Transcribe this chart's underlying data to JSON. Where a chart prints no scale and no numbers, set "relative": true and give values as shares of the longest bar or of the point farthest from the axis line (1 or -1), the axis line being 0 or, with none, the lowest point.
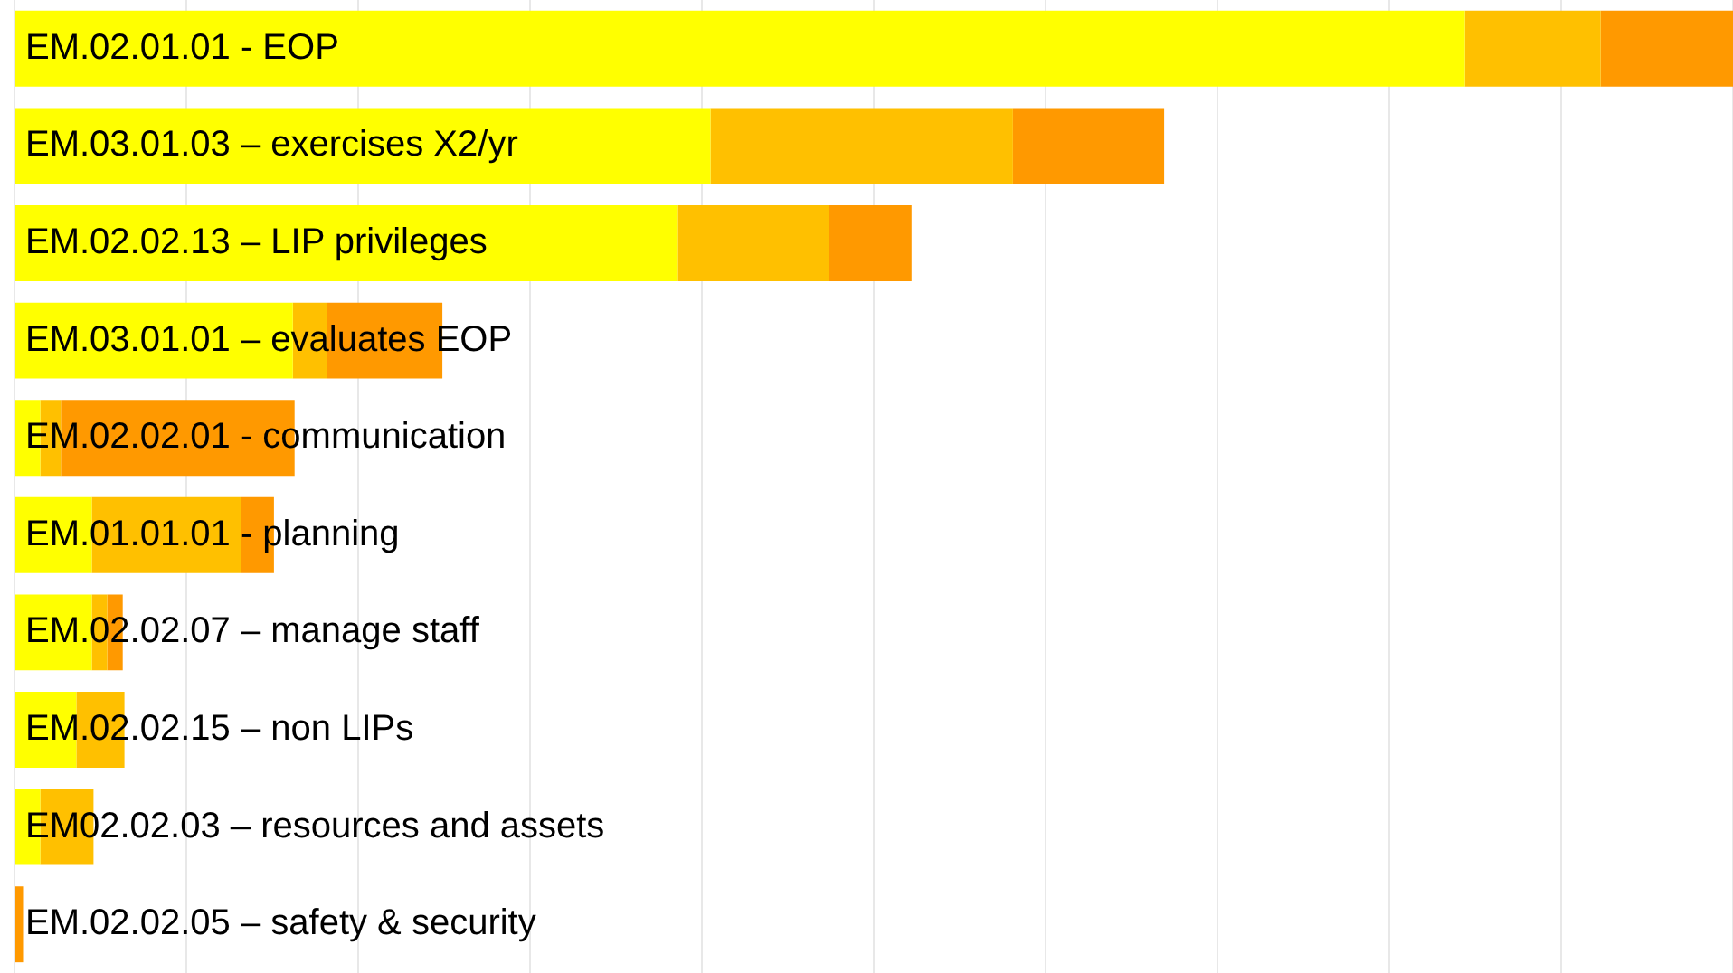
{
  "chart_data": {
    "type": "bar",
    "orientation": "horizontal",
    "stacked": true,
    "relative": true,
    "grid": "x",
    "categories": [
      "EM.02.01.01 - EOP",
      "EM.03.01.03 – exercises X2/yr",
      "EM.02.02.13 – LIP privileges",
      "EM.03.01.01 – evaluates EOP",
      "EM.02.02.01 - communication",
      "EM.01.01.01 - planning",
      "EM.02.02.07 – manage staff",
      "EM.02.02.15 – non LIPs",
      "EM02.02.03 – resources and assets",
      "EM.02.02.05 – safety & security"
    ],
    "series": [
      {
        "color": "#ffff00",
        "values": [
          0.844,
          0.405,
          0.386,
          0.162,
          0.015,
          0.045,
          0.045,
          0.036,
          0.015,
          0
        ]
      },
      {
        "color": "#ffc000",
        "values": [
          0.079,
          0.176,
          0.088,
          0.02,
          0.012,
          0.087,
          0.009,
          0.028,
          0.031,
          0
        ]
      },
      {
        "color": "#ff9900",
        "values": [
          0.077,
          0.088,
          0.048,
          0.067,
          0.136,
          0.019,
          0.009,
          0,
          0,
          0.005
        ]
      }
    ]
  }
}
